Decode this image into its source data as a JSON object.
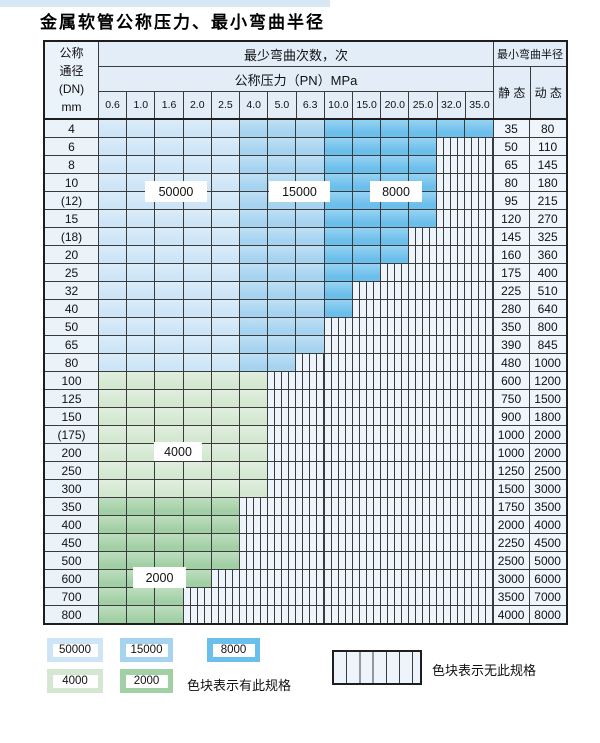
{
  "title": "金属软管公称压力、最小弯曲半径",
  "header": {
    "dn_lines": [
      "公称",
      "通径",
      "(DN)",
      "mm"
    ],
    "bend_cycles": "最少弯曲次数，次",
    "pressure": "公称压力（PN）MPa",
    "radius": "最小弯曲半径",
    "static": "静 态",
    "dynamic": "动 态"
  },
  "overlay_labels": [
    "50000",
    "15000",
    "8000",
    "4000",
    "2000"
  ],
  "legend": {
    "swatches": [
      {
        "label": "50000",
        "color": "#cde5f7"
      },
      {
        "label": "15000",
        "color": "#a5d3f0"
      },
      {
        "label": "8000",
        "color": "#6bbfec"
      },
      {
        "label": "4000",
        "color": "#d4e8d1"
      },
      {
        "label": "2000",
        "color": "#a2d0a5"
      }
    ],
    "has_spec_note": "色块表示有此规格",
    "no_spec_note": "色块表示无此规格"
  },
  "colors": {
    "cycles_50000": "#cde5f7",
    "cycles_15000": "#a5d3f0",
    "cycles_8000": "#6bbfec",
    "cycles_4000": "#d4e8d1",
    "cycles_2000": "#a2d0a5",
    "header_bg": "#e2edf8",
    "hatch_bg": "#edf4fb",
    "grid_line": "#3b3b3b"
  },
  "chart_data": {
    "type": "table",
    "title": "金属软管公称压力、最小弯曲半径",
    "pn_columns": [
      "0.6",
      "1.0",
      "1.6",
      "2.0",
      "2.5",
      "4.0",
      "5.0",
      "6.3",
      "10.0",
      "15.0",
      "20.0",
      "25.0",
      "32.0",
      "35.0"
    ],
    "blue_cycle_zones_by_pn": {
      "50000": [
        "0.6",
        "1.0",
        "1.6",
        "2.0",
        "2.5"
      ],
      "15000": [
        "4.0",
        "5.0",
        "6.3"
      ],
      "8000": [
        "10.0",
        "15.0",
        "20.0",
        "25.0",
        "32.0",
        "35.0"
      ]
    },
    "green_cycle_zones_by_dn": {
      "4000": [
        "100",
        "125",
        "150",
        "(175)",
        "200",
        "250",
        "300"
      ],
      "2000": [
        "350",
        "400",
        "450",
        "500",
        "600",
        "700",
        "800"
      ]
    },
    "rows": [
      {
        "dn": "4",
        "pn_count": 14,
        "pn_max": "35.0",
        "zone": "blue",
        "static": "35",
        "dynamic": "80"
      },
      {
        "dn": "6",
        "pn_count": 12,
        "pn_max": "25.0",
        "zone": "blue",
        "static": "50",
        "dynamic": "110"
      },
      {
        "dn": "8",
        "pn_count": 12,
        "pn_max": "25.0",
        "zone": "blue",
        "static": "65",
        "dynamic": "145"
      },
      {
        "dn": "10",
        "pn_count": 12,
        "pn_max": "25.0",
        "zone": "blue",
        "static": "80",
        "dynamic": "180"
      },
      {
        "dn": "(12)",
        "pn_count": 12,
        "pn_max": "25.0",
        "zone": "blue",
        "static": "95",
        "dynamic": "215"
      },
      {
        "dn": "15",
        "pn_count": 12,
        "pn_max": "25.0",
        "zone": "blue",
        "static": "120",
        "dynamic": "270"
      },
      {
        "dn": "(18)",
        "pn_count": 11,
        "pn_max": "20.0",
        "zone": "blue",
        "static": "145",
        "dynamic": "325"
      },
      {
        "dn": "20",
        "pn_count": 11,
        "pn_max": "20.0",
        "zone": "blue",
        "static": "160",
        "dynamic": "360"
      },
      {
        "dn": "25",
        "pn_count": 10,
        "pn_max": "15.0",
        "zone": "blue",
        "static": "175",
        "dynamic": "400"
      },
      {
        "dn": "32",
        "pn_count": 9,
        "pn_max": "10.0",
        "zone": "blue",
        "static": "225",
        "dynamic": "510"
      },
      {
        "dn": "40",
        "pn_count": 9,
        "pn_max": "10.0",
        "zone": "blue",
        "static": "280",
        "dynamic": "640"
      },
      {
        "dn": "50",
        "pn_count": 8,
        "pn_max": "6.3",
        "zone": "blue",
        "static": "350",
        "dynamic": "800"
      },
      {
        "dn": "65",
        "pn_count": 8,
        "pn_max": "6.3",
        "zone": "blue",
        "static": "390",
        "dynamic": "845"
      },
      {
        "dn": "80",
        "pn_count": 7,
        "pn_max": "5.0",
        "zone": "blue",
        "static": "480",
        "dynamic": "1000"
      },
      {
        "dn": "100",
        "pn_count": 6,
        "pn_max": "4.0",
        "zone": "g4000",
        "static": "600",
        "dynamic": "1200"
      },
      {
        "dn": "125",
        "pn_count": 6,
        "pn_max": "4.0",
        "zone": "g4000",
        "static": "750",
        "dynamic": "1500"
      },
      {
        "dn": "150",
        "pn_count": 6,
        "pn_max": "4.0",
        "zone": "g4000",
        "static": "900",
        "dynamic": "1800"
      },
      {
        "dn": "(175)",
        "pn_count": 6,
        "pn_max": "4.0",
        "zone": "g4000",
        "static": "1000",
        "dynamic": "2000"
      },
      {
        "dn": "200",
        "pn_count": 6,
        "pn_max": "4.0",
        "zone": "g4000",
        "static": "1000",
        "dynamic": "2000"
      },
      {
        "dn": "250",
        "pn_count": 6,
        "pn_max": "4.0",
        "zone": "g4000",
        "static": "1250",
        "dynamic": "2500"
      },
      {
        "dn": "300",
        "pn_count": 6,
        "pn_max": "4.0",
        "zone": "g4000",
        "static": "1500",
        "dynamic": "3000"
      },
      {
        "dn": "350",
        "pn_count": 5,
        "pn_max": "2.5",
        "zone": "g2000",
        "static": "1750",
        "dynamic": "3500"
      },
      {
        "dn": "400",
        "pn_count": 5,
        "pn_max": "2.5",
        "zone": "g2000",
        "static": "2000",
        "dynamic": "4000"
      },
      {
        "dn": "450",
        "pn_count": 5,
        "pn_max": "2.5",
        "zone": "g2000",
        "static": "2250",
        "dynamic": "4500"
      },
      {
        "dn": "500",
        "pn_count": 5,
        "pn_max": "2.5",
        "zone": "g2000",
        "static": "2500",
        "dynamic": "5000"
      },
      {
        "dn": "600",
        "pn_count": 4,
        "pn_max": "2.0",
        "zone": "g2000",
        "static": "3000",
        "dynamic": "6000"
      },
      {
        "dn": "700",
        "pn_count": 3,
        "pn_max": "1.6",
        "zone": "g2000",
        "static": "3500",
        "dynamic": "7000"
      },
      {
        "dn": "800",
        "pn_count": 3,
        "pn_max": "1.6",
        "zone": "g2000",
        "static": "4000",
        "dynamic": "8000"
      }
    ]
  }
}
